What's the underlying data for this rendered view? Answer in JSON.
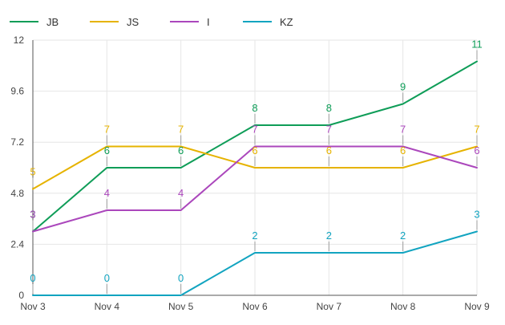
{
  "chart_data": {
    "type": "line",
    "categories": [
      "Nov 3",
      "Nov 4",
      "Nov 5",
      "Nov 6",
      "Nov 7",
      "Nov 8",
      "Nov 9"
    ],
    "ylim": [
      0,
      12
    ],
    "yticks": [
      "0",
      "2.4",
      "4.8",
      "7.2",
      "9.6",
      "12"
    ],
    "grid": true,
    "legend_position": "top-left",
    "series": [
      {
        "name": "JB",
        "color": "#0f9d58",
        "values": [
          3,
          6,
          6,
          8,
          8,
          9,
          11
        ]
      },
      {
        "name": "JS",
        "color": "#e6b300",
        "values": [
          5,
          7,
          7,
          6,
          6,
          6,
          7
        ]
      },
      {
        "name": "I",
        "color": "#ab47bc",
        "values": [
          3,
          4,
          4,
          7,
          7,
          7,
          6
        ]
      },
      {
        "name": "KZ",
        "color": "#12a4c0",
        "values": [
          0,
          0,
          0,
          2,
          2,
          2,
          3
        ]
      }
    ]
  }
}
